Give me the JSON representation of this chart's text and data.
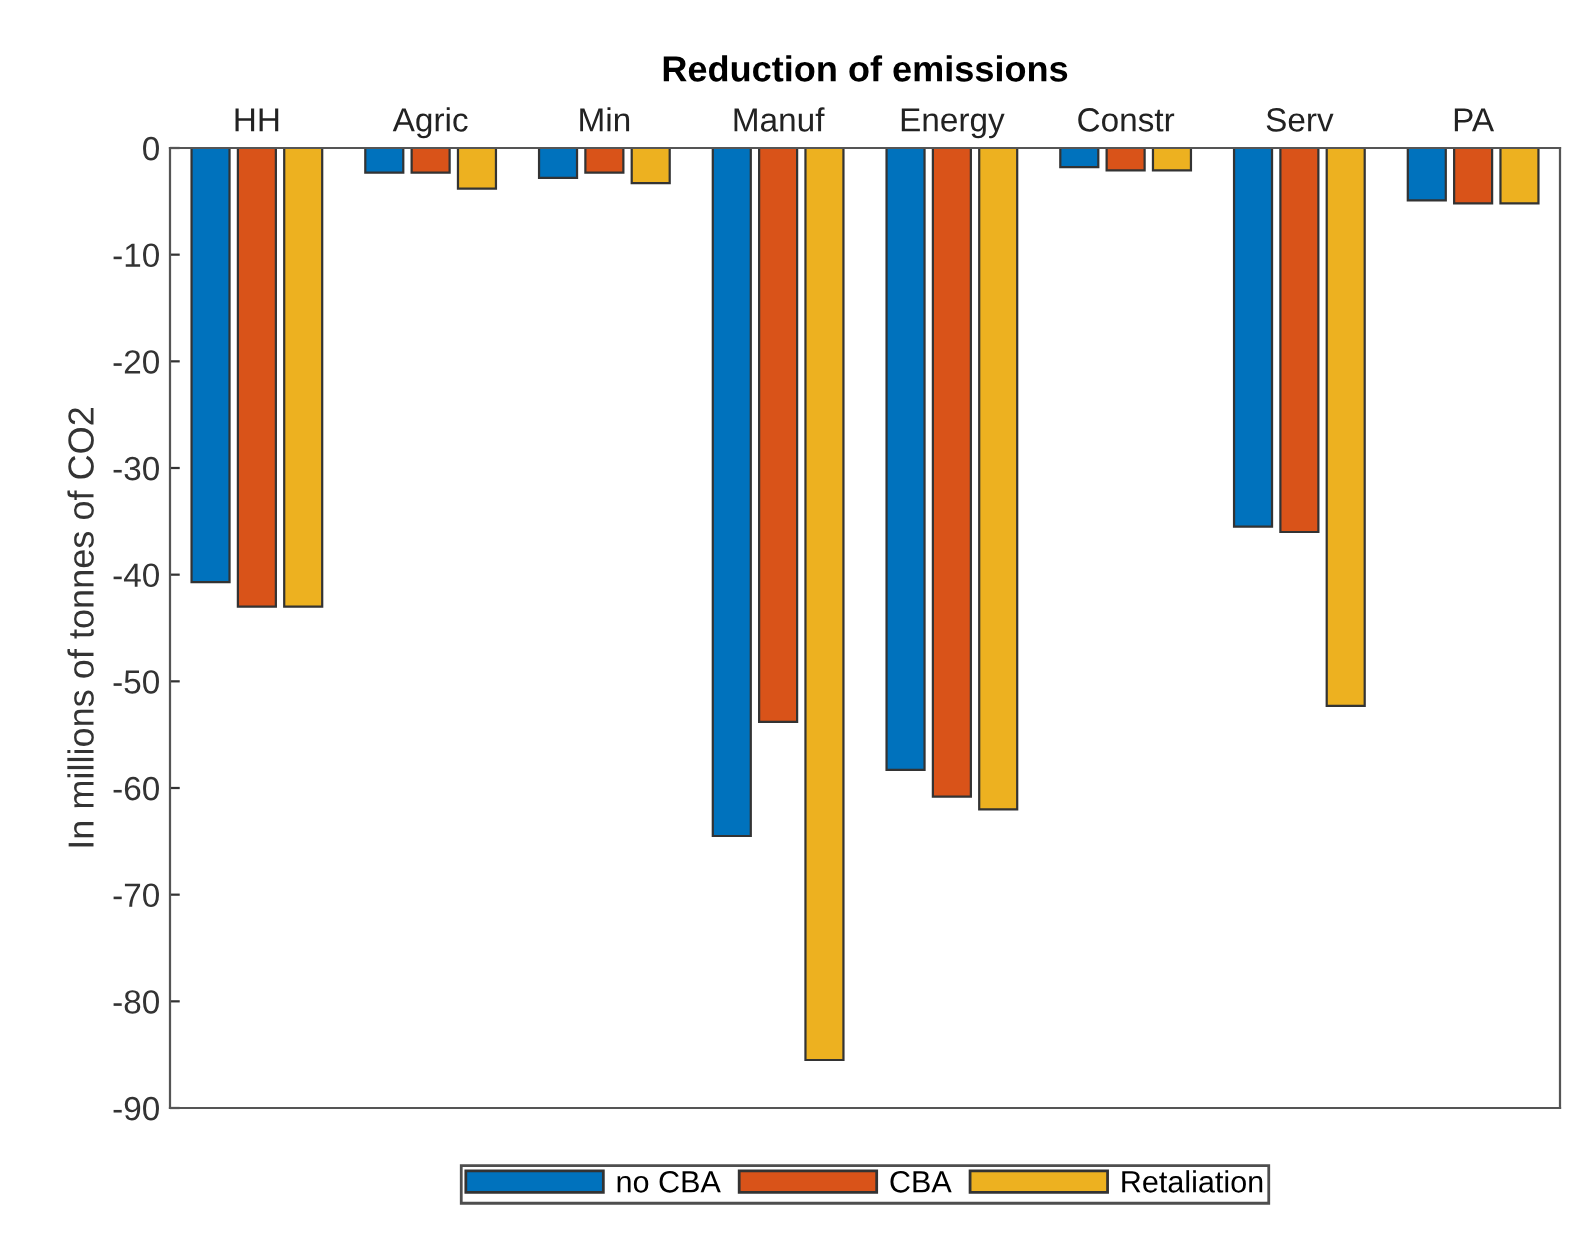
{
  "chart_data": {
    "type": "bar",
    "title": "Reduction of emissions",
    "ylabel": "In millions of tonnes of CO2",
    "categories": [
      "HH",
      "Agric",
      "Min",
      "Manuf",
      "Energy",
      "Constr",
      "Serv",
      "PA"
    ],
    "series": [
      {
        "name": "no CBA",
        "color": "#0072bd",
        "values": [
          -40.7,
          -2.3,
          -2.8,
          -64.5,
          -58.3,
          -1.8,
          -35.5,
          -4.9
        ]
      },
      {
        "name": "CBA",
        "color": "#d95319",
        "values": [
          -43,
          -2.3,
          -2.3,
          -53.8,
          -60.8,
          -2.1,
          -36,
          -5.2
        ]
      },
      {
        "name": "Retaliation",
        "color": "#edb120",
        "values": [
          -43,
          -3.8,
          -3.3,
          -85.5,
          -62,
          -2.1,
          -52.3,
          -5.2
        ]
      }
    ],
    "ylim": [
      -90,
      0
    ],
    "yticks": [
      -90,
      -80,
      -70,
      -60,
      -50,
      -40,
      -30,
      -20,
      -10,
      0
    ],
    "grid": false,
    "legend": "bottom"
  }
}
